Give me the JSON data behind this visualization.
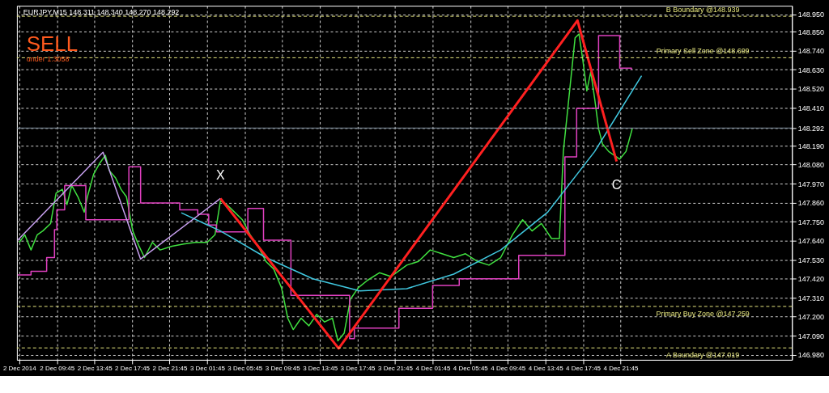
{
  "chart_data": {
    "type": "line",
    "annotations": [
      "EURJPY,M15  148.311 148.340 148.270 148.292",
      "SELL",
      "under 1.3058",
      {
        "text": "X",
        "x": "2014-12-03T03:10",
        "y": 147.884
      },
      {
        "text": "C",
        "x": "2014-12-04T21:20",
        "y": 148.099
      }
    ],
    "xlim": [
      "2014-12-02T05:30",
      "2014-12-05T16:00"
    ],
    "ylim": [
      146.95,
      149.0
    ],
    "xticks": [
      {
        "value": "2014-12-02T05:45",
        "label": "2 Dec 2014"
      },
      {
        "value": "2014-12-02T09:45",
        "label": "2 Dec 09:45"
      },
      {
        "value": "2014-12-02T13:45",
        "label": "2 Dec 13:45"
      },
      {
        "value": "2014-12-02T17:45",
        "label": "2 Dec 17:45"
      },
      {
        "value": "2014-12-02T21:45",
        "label": "2 Dec 21:45"
      },
      {
        "value": "2014-12-03T01:45",
        "label": "3 Dec 01:45"
      },
      {
        "value": "2014-12-03T05:45",
        "label": "3 Dec 05:45"
      },
      {
        "value": "2014-12-03T09:45",
        "label": "3 Dec 09:45"
      },
      {
        "value": "2014-12-03T13:45",
        "label": "3 Dec 13:45"
      },
      {
        "value": "2014-12-03T17:45",
        "label": "3 Dec 17:45"
      },
      {
        "value": "2014-12-03T21:45",
        "label": "3 Dec 21:45"
      },
      {
        "value": "2014-12-04T01:45",
        "label": "4 Dec 01:45"
      },
      {
        "value": "2014-12-04T05:45",
        "label": "4 Dec 05:45"
      },
      {
        "value": "2014-12-04T09:45",
        "label": "4 Dec 09:45"
      },
      {
        "value": "2014-12-04T13:45",
        "label": "4 Dec 13:45"
      },
      {
        "value": "2014-12-04T17:45",
        "label": "4 Dec 17:45"
      },
      {
        "value": "2014-12-04T21:45",
        "label": "4 Dec 21:45"
      }
    ],
    "yticks": [
      {
        "value": 146.98,
        "label": "146.980"
      },
      {
        "value": 147.09,
        "label": "147.090"
      },
      {
        "value": 147.2,
        "label": "147.200"
      },
      {
        "value": 147.31,
        "label": "147.310"
      },
      {
        "value": 147.42,
        "label": "147.420"
      },
      {
        "value": 147.53,
        "label": "147.530"
      },
      {
        "value": 147.64,
        "label": "147.640"
      },
      {
        "value": 147.75,
        "label": "147.750"
      },
      {
        "value": 147.86,
        "label": "147.860"
      },
      {
        "value": 147.97,
        "label": "147.970"
      },
      {
        "value": 148.08,
        "label": "148.080"
      },
      {
        "value": 148.19,
        "label": "148.190"
      },
      148.292,
      {
        "value": 148.41,
        "label": "148.410"
      },
      {
        "value": 148.52,
        "label": "148.520"
      },
      {
        "value": 148.63,
        "label": "148.630"
      },
      {
        "value": 148.74,
        "label": "148.740"
      },
      {
        "value": 148.85,
        "label": "148.850"
      },
      {
        "value": 148.95,
        "label": "148.950"
      }
    ],
    "grid": true,
    "marker": "none",
    "line_style": "solid",
    "ref_lines": [
      {
        "axis": "y",
        "value": 148.939,
        "label": "B Boundary @148.939",
        "color": "#e8e880",
        "line_style": "dashed"
      },
      {
        "axis": "y",
        "value": 148.699,
        "label": "Primary Sell Zone @148.699",
        "color": "#e8e880",
        "line_style": "dashed"
      },
      {
        "axis": "y",
        "value": 147.259,
        "label": "Primary Buy Zone @147.259",
        "color": "#e8e880",
        "line_style": "dashed"
      },
      {
        "axis": "y",
        "value": 147.019,
        "label": "A Boundary @147.019",
        "color": "#e8e880",
        "line_style": "dashed"
      },
      {
        "axis": "y",
        "value": 148.292,
        "label": null,
        "color": "#8090a0",
        "line_style": "solid"
      }
    ],
    "series": [
      {
        "color": "#40e040",
        "x": [
          "2014-12-02T05:45",
          "2014-12-02T06:20",
          "2014-12-02T07:00",
          "2014-12-02T07:40",
          "2014-12-02T08:15",
          "2014-12-02T09:05",
          "2014-12-02T09:40",
          "2014-12-02T10:20",
          "2014-12-02T10:50",
          "2014-12-02T11:20",
          "2014-12-02T12:00",
          "2014-12-02T12:40",
          "2014-12-02T13:00",
          "2014-12-02T13:40",
          "2014-12-02T14:20",
          "2014-12-02T14:55",
          "2014-12-02T15:20",
          "2014-12-02T16:00",
          "2014-12-02T16:35",
          "2014-12-02T17:10",
          "2014-12-02T17:50",
          "2014-12-02T18:30",
          "2014-12-02T19:05",
          "2014-12-02T19:55",
          "2014-12-02T20:45",
          "2014-12-02T22:00",
          "2014-12-02T23:15",
          "2014-12-03T00:30",
          "2014-12-03T01:45",
          "2014-12-03T02:35",
          "2014-12-03T03:10",
          "2014-12-03T03:50",
          "2014-12-03T04:40",
          "2014-12-03T05:30",
          "2014-12-03T06:20",
          "2014-12-03T07:10",
          "2014-12-03T08:00",
          "2014-12-03T08:50",
          "2014-12-03T09:40",
          "2014-12-03T10:20",
          "2014-12-03T10:55",
          "2014-12-03T11:45",
          "2014-12-03T12:35",
          "2014-12-03T13:25",
          "2014-12-03T14:15",
          "2014-12-03T15:05",
          "2014-12-03T15:40",
          "2014-12-03T16:20",
          "2014-12-03T17:00",
          "2014-12-03T17:50",
          "2014-12-03T18:50",
          "2014-12-03T20:05",
          "2014-12-03T21:20",
          "2014-12-03T23:00",
          "2014-12-04T00:15",
          "2014-12-04T01:30",
          "2014-12-04T02:45",
          "2014-12-04T04:00",
          "2014-12-04T05:15",
          "2014-12-04T06:30",
          "2014-12-04T07:45",
          "2014-12-04T09:00",
          "2014-12-04T10:15",
          "2014-12-04T11:20",
          "2014-12-04T12:20",
          "2014-12-04T13:20",
          "2014-12-04T14:25",
          "2014-12-04T15:15",
          "2014-12-04T15:40",
          "2014-12-04T16:05",
          "2014-12-04T16:30",
          "2014-12-04T16:55",
          "2014-12-04T17:20",
          "2014-12-04T17:45",
          "2014-12-04T18:10",
          "2014-12-04T18:35",
          "2014-12-04T19:00",
          "2014-12-04T19:25",
          "2014-12-04T19:50",
          "2014-12-04T20:30",
          "2014-12-04T21:05",
          "2014-12-04T21:40",
          "2014-12-04T22:20",
          "2014-12-04T23:00"
        ],
        "values": [
          147.63,
          147.674,
          147.586,
          147.674,
          147.696,
          147.739,
          147.915,
          147.937,
          147.849,
          147.959,
          147.893,
          147.805,
          147.893,
          148.025,
          148.09,
          148.134,
          148.046,
          148.003,
          147.937,
          147.893,
          147.696,
          147.608,
          147.542,
          147.63,
          147.586,
          147.608,
          147.621,
          147.63,
          147.63,
          147.674,
          147.871,
          147.849,
          147.805,
          147.761,
          147.674,
          147.608,
          147.52,
          147.476,
          147.367,
          147.191,
          147.125,
          147.191,
          147.147,
          147.213,
          147.169,
          147.191,
          147.06,
          147.104,
          147.301,
          147.367,
          147.411,
          147.454,
          147.432,
          147.498,
          147.52,
          147.586,
          147.564,
          147.542,
          147.564,
          147.52,
          147.498,
          147.542,
          147.674,
          147.761,
          147.696,
          147.739,
          147.652,
          147.652,
          148.156,
          148.375,
          148.595,
          148.814,
          148.836,
          148.682,
          148.507,
          148.617,
          148.463,
          148.288,
          148.2,
          148.156,
          148.134,
          148.112,
          148.156,
          148.288
        ]
      },
      {
        "color": "#e040c0",
        "type": "step",
        "x": [
          "2014-12-02T05:35",
          "2014-12-02T07:00",
          "2014-12-02T08:25",
          "2014-12-02T08:40",
          "2014-12-02T09:30",
          "2014-12-02T09:45",
          "2014-12-02T10:35",
          "2014-12-02T12:40",
          "2014-12-02T12:50",
          "2014-12-02T17:15",
          "2014-12-02T17:25",
          "2014-12-02T18:40",
          "2014-12-02T21:10",
          "2014-12-02T22:50",
          "2014-12-03T00:45",
          "2014-12-03T01:55",
          "2014-12-03T02:45",
          "2014-12-03T04:55",
          "2014-12-03T06:05",
          "2014-12-03T07:45",
          "2014-12-03T09:55",
          "2014-12-03T10:40",
          "2014-12-03T16:20",
          "2014-12-03T16:55",
          "2014-12-03T17:25",
          "2014-12-03T20:45",
          "2014-12-03T22:10",
          "2014-12-04T00:50",
          "2014-12-04T01:45",
          "2014-12-04T04:25",
          "2014-12-04T04:35",
          "2014-12-04T09:40",
          "2014-12-04T10:55",
          "2014-12-04T15:25",
          "2014-12-04T15:50",
          "2014-12-04T16:45",
          "2014-12-04T17:05",
          "2014-12-04T19:15",
          "2014-12-04T19:25",
          "2014-12-04T20:30",
          "2014-12-04T21:40",
          "2014-12-04T22:55"
        ],
        "values": [
          147.441,
          147.463,
          147.463,
          147.542,
          147.704,
          147.818,
          147.959,
          147.959,
          147.761,
          147.761,
          148.068,
          147.858,
          147.858,
          147.818,
          147.792,
          147.731,
          147.691,
          147.691,
          147.827,
          147.643,
          147.643,
          147.323,
          147.323,
          147.073,
          147.134,
          147.134,
          147.248,
          147.248,
          147.38,
          147.38,
          147.419,
          147.419,
          147.555,
          147.555,
          148.125,
          148.125,
          148.406,
          148.406,
          148.827,
          148.827,
          148.639,
          148.63
        ]
      },
      {
        "color": "#40c8e0",
        "x": [
          "2014-12-02T23:00",
          "2014-12-03T03:10",
          "2014-12-03T08:00",
          "2014-12-03T13:00",
          "2014-12-03T18:00",
          "2014-12-03T23:00",
          "2014-12-04T04:00",
          "2014-12-04T09:00",
          "2014-12-04T14:00",
          "2014-12-04T19:00",
          "2014-12-05T00:00"
        ],
        "values": [
          147.801,
          147.696,
          147.542,
          147.419,
          147.349,
          147.362,
          147.446,
          147.586,
          147.805,
          148.156,
          148.595
        ]
      },
      {
        "color": "#c8a0f0",
        "x": [
          "2014-12-02T05:35",
          "2014-12-02T14:40",
          "2014-12-02T18:40",
          "2014-12-03T03:10"
        ],
        "values": [
          147.643,
          148.152,
          147.533,
          147.884
        ]
      },
      {
        "color": "#ff2020",
        "x": [
          "2014-12-03T03:10",
          "2014-12-03T15:45",
          "2014-12-04T17:10",
          "2014-12-04T21:20"
        ],
        "values": [
          147.884,
          147.016,
          148.915,
          148.099
        ]
      }
    ]
  }
}
